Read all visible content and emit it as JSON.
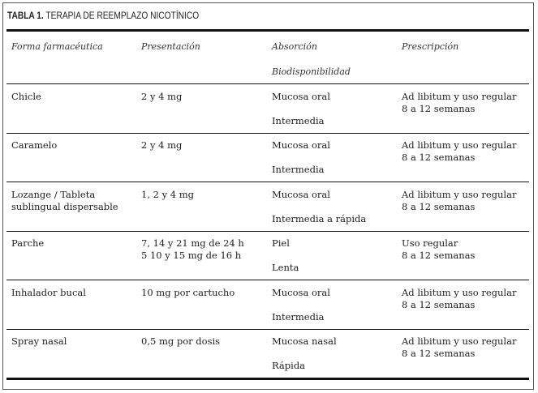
{
  "table": {
    "label": "TABLA 1.",
    "title": "TERAPIA DE REEMPLAZO NICOTÍNICO",
    "headers": {
      "forma": "Forma farmacéutica",
      "presentacion": "Presentación",
      "absorcion": "Absorción",
      "biodisponibilidad": "Biodisponibilidad",
      "prescripcion": "Prescripción"
    },
    "rows": [
      {
        "forma": [
          "Chicle"
        ],
        "presentacion": [
          "2 y 4 mg"
        ],
        "absorcion": "Mucosa oral",
        "biodisponibilidad": "Intermedia",
        "prescripcion": [
          "Ad libitum y uso regular",
          "8 a 12 semanas"
        ]
      },
      {
        "forma": [
          "Caramelo"
        ],
        "presentacion": [
          "2 y 4 mg"
        ],
        "absorcion": "Mucosa oral",
        "biodisponibilidad": "Intermedia",
        "prescripcion": [
          "Ad libitum y uso regular",
          "8 a 12 semanas"
        ]
      },
      {
        "forma": [
          "Lozange / Tableta",
          "sublingual dispersable"
        ],
        "presentacion": [
          "1, 2 y 4 mg"
        ],
        "absorcion": "Mucosa oral",
        "biodisponibilidad": "Intermedia a rápida",
        "prescripcion": [
          "Ad libitum y uso regular",
          "8 a 12 semanas"
        ]
      },
      {
        "forma": [
          "Parche"
        ],
        "presentacion": [
          "7, 14 y 21 mg de 24 h",
          "5 10 y 15 mg de 16 h"
        ],
        "absorcion": "Piel",
        "biodisponibilidad": "Lenta",
        "prescripcion": [
          "Uso regular",
          "8 a 12 semanas"
        ]
      },
      {
        "forma": [
          "Inhalador bucal"
        ],
        "presentacion": [
          "10 mg por cartucho"
        ],
        "absorcion": "Mucosa oral",
        "biodisponibilidad": "Intermedia",
        "prescripcion": [
          "Ad libitum y uso regular",
          "8 a 12 semanas"
        ]
      },
      {
        "forma": [
          "Spray nasal"
        ],
        "presentacion": [
          "0,5 mg por dosis"
        ],
        "absorcion": "Mucosa nasal",
        "biodisponibilidad": "Rápida",
        "prescripcion": [
          "Ad libitum y uso regular",
          "8 a 12 semanas"
        ]
      }
    ]
  }
}
